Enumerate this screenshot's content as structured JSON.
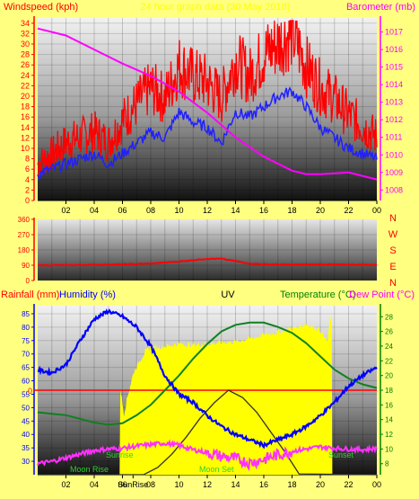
{
  "colors": {
    "page_bg": "#ffff80",
    "windspeed": "#ff0000",
    "avg_wind": "#2020ff",
    "barometer": "#ff00ff",
    "direction": "#ff0000",
    "humidity": "#0000ff",
    "temperature": "#108020",
    "dewpoint": "#ff30ff",
    "uv": "#303030",
    "solar": "#ffff00",
    "rain_line": "#ff0000",
    "sun_moon_text": "#30d030",
    "label_red": "#ff0000",
    "label_green": "#008000",
    "label_blue": "#0000ff",
    "label_magenta": "#ff00ff"
  },
  "top_panel": {
    "left_title": "Windspeed (kph)",
    "center_title": "24 hour graph data (30 May 2018)",
    "right_title": "Barometer (mb)"
  },
  "wind_dir_panel": {
    "compass": [
      "N",
      "W",
      "S",
      "E",
      "N"
    ]
  },
  "bottom_panel": {
    "rainfall_label": "Rainfall (mm)",
    "humidity_label": "Humidity (%)",
    "uv_label": "UV",
    "temperature_label": "Temperature (°C)",
    "dewpoint_label": "Dew Point (°C)",
    "sunrise_label": "Sunrise",
    "sunset_label": "Sunset",
    "moonrise_label": "Moon Rise",
    "moonset_label": "Moon Set",
    "sun_tick_label": "SunRise",
    "rain_zero_label": "0"
  },
  "chart_data": [
    {
      "type": "line",
      "x_ticks": [
        "02",
        "04",
        "06",
        "08",
        "10",
        "12",
        "14",
        "16",
        "18",
        "20",
        "22",
        "00"
      ],
      "xlim": [
        0,
        24
      ],
      "y_left": {
        "label": "Windspeed (kph)",
        "lim": [
          0,
          35
        ],
        "ticks": [
          0,
          2,
          4,
          6,
          8,
          10,
          12,
          14,
          16,
          18,
          20,
          22,
          24,
          26,
          28,
          30,
          32,
          34
        ]
      },
      "y_right": {
        "label": "Barometer (mb)",
        "lim": [
          1007.4,
          1017.8
        ],
        "ticks": [
          1008,
          1009,
          1010,
          1011,
          1012,
          1013,
          1014,
          1015,
          1016,
          1017
        ]
      },
      "grid": true,
      "series": [
        {
          "name": "Windspeed (kph)",
          "axis": "left",
          "x": [
            0,
            1,
            2,
            3,
            4,
            5,
            6,
            7,
            8,
            9,
            10,
            11,
            12,
            13,
            14,
            15,
            16,
            17,
            18,
            19,
            20,
            21,
            22,
            23,
            24
          ],
          "values": [
            6,
            8,
            10,
            11,
            12,
            10,
            14,
            17,
            20,
            18,
            24,
            22,
            21,
            18,
            25,
            22,
            26,
            28,
            30,
            24,
            20,
            18,
            15,
            13,
            11
          ]
        },
        {
          "name": "Wind Speed Average",
          "axis": "left",
          "x": [
            0,
            1,
            2,
            3,
            4,
            5,
            6,
            7,
            8,
            9,
            10,
            11,
            12,
            13,
            14,
            15,
            16,
            17,
            18,
            19,
            20,
            21,
            22,
            23,
            24
          ],
          "values": [
            5,
            6,
            7,
            8,
            9,
            7,
            9,
            11,
            13,
            12,
            17,
            15,
            14,
            11,
            17,
            16,
            18,
            20,
            21,
            18,
            14,
            12,
            10,
            9,
            8
          ]
        },
        {
          "name": "Barometer (mb)",
          "axis": "right",
          "x": [
            0,
            2,
            4,
            6,
            8,
            10,
            12,
            14,
            16,
            18,
            19,
            20,
            22,
            24
          ],
          "values": [
            1017.2,
            1016.8,
            1016.0,
            1015.2,
            1014.5,
            1013.6,
            1012.4,
            1011.0,
            1009.9,
            1009.1,
            1008.9,
            1008.9,
            1009.0,
            1008.6
          ]
        }
      ]
    },
    {
      "type": "line",
      "x_ticks": [],
      "xlim": [
        0,
        24
      ],
      "y_left": {
        "lim": [
          0,
          360
        ],
        "ticks": [
          0,
          90,
          180,
          270,
          360
        ]
      },
      "y_right_labels": [
        "N",
        "W",
        "S",
        "E",
        "N"
      ],
      "grid": true,
      "series": [
        {
          "name": "Wind Direction",
          "x": [
            0,
            2,
            4,
            6,
            8,
            10,
            12,
            13,
            14,
            15,
            16,
            18,
            20,
            22,
            24
          ],
          "values": [
            90,
            90,
            92,
            95,
            100,
            112,
            128,
            128,
            115,
            100,
            95,
            93,
            95,
            93,
            92
          ]
        }
      ]
    },
    {
      "type": "line",
      "x_ticks": [
        "02",
        "04",
        "06",
        "SunRise",
        "08",
        "10",
        "12",
        "14",
        "16",
        "18",
        "20",
        "22",
        "00"
      ],
      "xlim": [
        0,
        24
      ],
      "y_left": {
        "label": "Humidity (%)",
        "lim": [
          25,
          88
        ],
        "ticks": [
          30,
          35,
          40,
          45,
          50,
          55,
          60,
          65,
          70,
          75,
          80,
          85
        ]
      },
      "y_right": {
        "label": "Temperature (°C)",
        "lim": [
          6.5,
          29.5
        ],
        "ticks": [
          8,
          10,
          12,
          14,
          16,
          18,
          20,
          22,
          24,
          26,
          28
        ]
      },
      "rainfall": {
        "label": "Rainfall (mm)",
        "value": 0
      },
      "grid": true,
      "series": [
        {
          "name": "Humidity (%)",
          "axis": "left",
          "x": [
            0,
            1,
            2,
            3,
            4,
            5,
            6,
            7,
            8,
            9,
            10,
            11,
            12,
            13,
            14,
            15,
            16,
            17,
            18,
            19,
            20,
            21,
            22,
            23,
            24
          ],
          "values": [
            64,
            63,
            66,
            75,
            83,
            86,
            84,
            80,
            73,
            62,
            55,
            52,
            47,
            43,
            40,
            38,
            36,
            38,
            40,
            43,
            47,
            52,
            58,
            62,
            65
          ]
        },
        {
          "name": "Temperature (°C)",
          "axis": "right",
          "x": [
            0,
            1,
            2,
            3,
            4,
            5,
            6,
            7,
            8,
            9,
            10,
            11,
            12,
            13,
            14,
            15,
            16,
            17,
            18,
            19,
            20,
            21,
            22,
            23,
            24
          ],
          "values": [
            15,
            14.8,
            14.6,
            14.1,
            13.6,
            13.3,
            13.5,
            14.6,
            16.0,
            18.0,
            20.0,
            22.3,
            24.3,
            26.0,
            26.9,
            27.2,
            27.2,
            26.6,
            25.8,
            24.4,
            22.6,
            20.8,
            19.6,
            18.8,
            18.3
          ]
        },
        {
          "name": "Dew Point (°C)",
          "axis": "right",
          "x": [
            0,
            1,
            2,
            3,
            4,
            5,
            6,
            7,
            8,
            9,
            10,
            11,
            12,
            13,
            14,
            15,
            16,
            17,
            18,
            19,
            20,
            21,
            22,
            23,
            24
          ],
          "values": [
            8.0,
            8.3,
            8.8,
            9.3,
            9.8,
            10.0,
            10.1,
            10.4,
            10.6,
            10.8,
            10.5,
            9.9,
            9.5,
            9.0,
            8.7,
            8.1,
            8.6,
            9.2,
            9.7,
            10.0,
            10.3,
            10.1,
            10.0,
            9.9,
            10.1
          ]
        },
        {
          "name": "UV",
          "axis": "right",
          "x": [
            0,
            6.5,
            7.5,
            8.5,
            9.5,
            10.5,
            11.5,
            12.5,
            13.5,
            14.5,
            15.5,
            16.5,
            17.5,
            18.5,
            24
          ],
          "values": [
            6.5,
            6.5,
            6.5,
            7.5,
            9.3,
            11.6,
            14.2,
            16.3,
            18.0,
            17.0,
            15.0,
            12.3,
            9.6,
            6.6,
            6.5
          ]
        },
        {
          "name": "Solar Radiation",
          "axis": "right",
          "x": [
            0,
            5.8,
            5.85,
            6.1,
            6.4,
            6.8,
            7.2,
            7.6,
            8.0,
            9.0,
            10.0,
            11.0,
            12.0,
            13.0,
            14.0,
            15.0,
            16.0,
            17.0,
            18.0,
            19.0,
            20.0,
            20.5,
            20.8,
            20.85,
            24
          ],
          "values": [
            6.5,
            6.5,
            18.3,
            14.8,
            17.5,
            20.5,
            22.0,
            23.2,
            23.8,
            24.0,
            24.3,
            24.2,
            24.3,
            24.5,
            24.6,
            25.0,
            25.5,
            25.9,
            26.4,
            27.0,
            26.2,
            24.5,
            29.0,
            6.5,
            6.5
          ]
        }
      ]
    }
  ]
}
